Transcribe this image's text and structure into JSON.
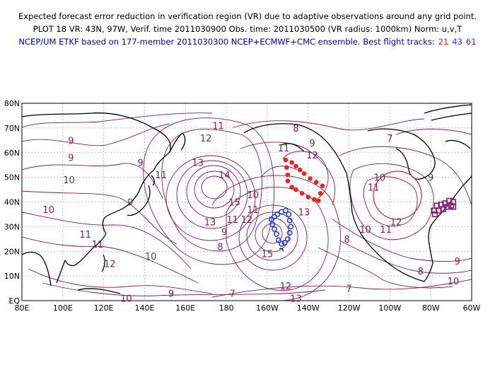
{
  "header": {
    "line1": "Expected forecast error reduction in verification region (VR) due to adaptive observations around any grid point.",
    "line2": "PLOT 18 VR: 43N, 97W, Verif. time 2011030900 Obs. time: 2011030500 (VR radius: 1000km) Norm: u,v,T",
    "line3": "NCEP/UM ETKF based on 177-member 2011030300 NCEP+ECMWF+CMC ensemble. Best flight tracks:",
    "flights": [
      {
        "label": "21",
        "color": "#ee2222"
      },
      {
        "label": "43",
        "color": "#2244ee"
      },
      {
        "label": "61",
        "color": "#8a1a6a"
      }
    ]
  },
  "map": {
    "lat_labels": [
      "EQ",
      "10N",
      "20N",
      "30N",
      "40N",
      "50N",
      "60N",
      "70N",
      "80N"
    ],
    "lon_labels": [
      "80E",
      "100E",
      "120E",
      "140E",
      "160E",
      "180",
      "160W",
      "140W",
      "120W",
      "100W",
      "80W",
      "60W"
    ],
    "contour_color": "#7a1f5c",
    "vr_circle_color": "#e03030",
    "contour_labels": [
      {
        "text": "11",
        "lon": 176,
        "lat": 71
      },
      {
        "text": "12",
        "lon": 170,
        "lat": 66
      },
      {
        "text": "8",
        "lon": 214,
        "lat": 70
      },
      {
        "text": "9",
        "lon": 222,
        "lat": 64
      },
      {
        "text": "7",
        "lon": 260,
        "lat": 66
      },
      {
        "text": "9",
        "lon": 104,
        "lat": 65
      },
      {
        "text": "9",
        "lon": 104,
        "lat": 58
      },
      {
        "text": "10",
        "lon": 103,
        "lat": 49
      },
      {
        "text": "10",
        "lon": 93,
        "lat": 37
      },
      {
        "text": "11",
        "lon": 111,
        "lat": 27
      },
      {
        "text": "11",
        "lon": 117,
        "lat": 23
      },
      {
        "text": "12",
        "lon": 123,
        "lat": 15
      },
      {
        "text": "10",
        "lon": 143,
        "lat": 18
      },
      {
        "text": "9",
        "lon": 133,
        "lat": 40
      },
      {
        "text": "9",
        "lon": 138,
        "lat": 56
      },
      {
        "text": "11",
        "lon": 148,
        "lat": 51
      },
      {
        "text": "13",
        "lon": 166,
        "lat": 56
      },
      {
        "text": "14",
        "lon": 179,
        "lat": 51
      },
      {
        "text": "15",
        "lon": 184,
        "lat": 40
      },
      {
        "text": "13",
        "lon": 172,
        "lat": 32
      },
      {
        "text": "11",
        "lon": 183,
        "lat": 33
      },
      {
        "text": "12",
        "lon": 190,
        "lat": 33
      },
      {
        "text": "9",
        "lon": 179,
        "lat": 28
      },
      {
        "text": "8",
        "lon": 177,
        "lat": 22
      },
      {
        "text": "10",
        "lon": 193,
        "lat": 43
      },
      {
        "text": "11",
        "lon": 193,
        "lat": 37
      },
      {
        "text": "15",
        "lon": 200,
        "lat": 19
      },
      {
        "text": "11",
        "lon": 208,
        "lat": 62
      },
      {
        "text": "12",
        "lon": 222,
        "lat": 59
      },
      {
        "text": "13",
        "lon": 218,
        "lat": 36
      },
      {
        "text": "12",
        "lon": 209,
        "lat": 6
      },
      {
        "text": "13",
        "lon": 214,
        "lat": 1
      },
      {
        "text": "7",
        "lon": 183,
        "lat": 3
      },
      {
        "text": "9",
        "lon": 153,
        "lat": 3
      },
      {
        "text": "10",
        "lon": 131,
        "lat": 1
      },
      {
        "text": "8",
        "lon": 239,
        "lat": 25
      },
      {
        "text": "7",
        "lon": 240,
        "lat": 5
      },
      {
        "text": "11",
        "lon": 258,
        "lat": 29
      },
      {
        "text": "12",
        "lon": 263,
        "lat": 32
      },
      {
        "text": "10",
        "lon": 255,
        "lat": 50
      },
      {
        "text": "11",
        "lon": 252,
        "lat": 46
      },
      {
        "text": "9",
        "lon": 280,
        "lat": 50
      },
      {
        "text": "8",
        "lon": 275,
        "lat": 12
      },
      {
        "text": "9",
        "lon": 293,
        "lat": 16
      },
      {
        "text": "10",
        "lon": 291,
        "lat": 8
      },
      {
        "text": "10",
        "lon": 248,
        "lat": 29
      }
    ],
    "flight_tracks": [
      {
        "name": "21",
        "color": "#ee2222",
        "marker": "dot",
        "points": [
          [
            209,
            57
          ],
          [
            212,
            56
          ],
          [
            214,
            54.5
          ],
          [
            216,
            53
          ],
          [
            218,
            51.5
          ],
          [
            221,
            49.5
          ],
          [
            224,
            48
          ],
          [
            227,
            46.5
          ],
          [
            226,
            43.5
          ],
          [
            225,
            40.5
          ],
          [
            223,
            41
          ],
          [
            220,
            42
          ],
          [
            217,
            43.5
          ],
          [
            214,
            45
          ],
          [
            212,
            46
          ],
          [
            210,
            48.5
          ],
          [
            210,
            51
          ],
          [
            209.5,
            54
          ]
        ]
      },
      {
        "name": "43",
        "color": "#2244ee",
        "marker": "circle",
        "points": [
          [
            205,
            35
          ],
          [
            207,
            36
          ],
          [
            209,
            36.5
          ],
          [
            210.5,
            35
          ],
          [
            211,
            32.5
          ],
          [
            211.5,
            30
          ],
          [
            211,
            27.5
          ],
          [
            210,
            25
          ],
          [
            208.5,
            23.5
          ],
          [
            207,
            23
          ],
          [
            205.5,
            24.5
          ],
          [
            204.5,
            27
          ],
          [
            203.5,
            29
          ],
          [
            202.5,
            31
          ],
          [
            202,
            33
          ],
          [
            203.5,
            34
          ]
        ]
      },
      {
        "name": "61",
        "color": "#8a1a6a",
        "marker": "square",
        "points": [
          [
            282,
            35
          ],
          [
            284,
            36.5
          ],
          [
            286,
            37
          ],
          [
            288,
            38
          ],
          [
            290,
            38.5
          ],
          [
            291,
            38
          ],
          [
            291,
            40
          ],
          [
            289,
            40.5
          ],
          [
            287,
            39.5
          ],
          [
            285,
            39
          ],
          [
            283,
            38.5
          ],
          [
            281.5,
            36.5
          ]
        ]
      }
    ]
  }
}
